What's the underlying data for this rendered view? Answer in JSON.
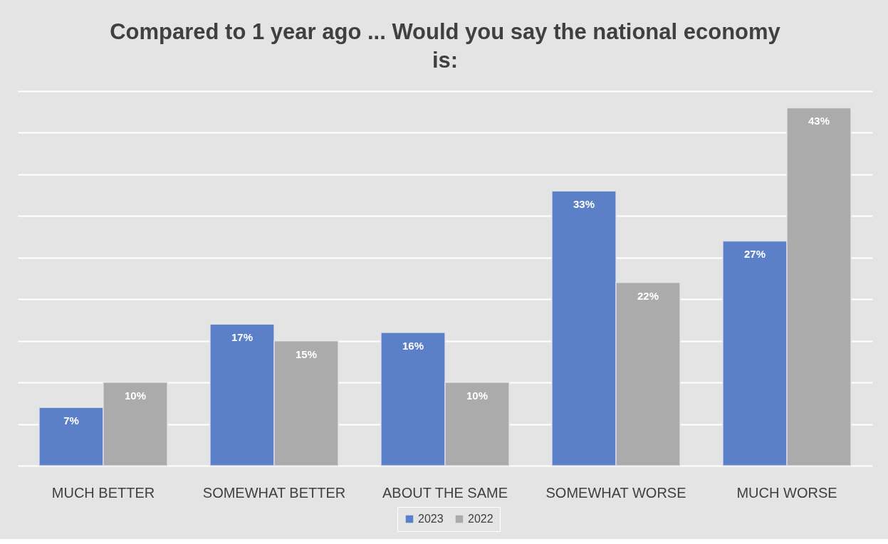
{
  "chart_data": {
    "type": "bar",
    "title": "Compared to 1 year ago ... Would you say the national economy is:",
    "categories": [
      "MUCH BETTER",
      "SOMEWHAT BETTER",
      "ABOUT THE SAME",
      "SOMEWHAT WORSE",
      "MUCH WORSE"
    ],
    "series": [
      {
        "name": "2023",
        "color": "#5b80c8",
        "values": [
          7,
          17,
          16,
          33,
          27
        ],
        "value_labels": [
          "7%",
          "17%",
          "16%",
          "33%",
          "27%"
        ]
      },
      {
        "name": "2022",
        "color": "#ababab",
        "values": [
          10,
          15,
          10,
          22,
          43
        ],
        "value_labels": [
          "10%",
          "15%",
          "10%",
          "22%",
          "43%"
        ]
      }
    ],
    "ylim": [
      0,
      45
    ],
    "yticks": [
      0,
      5,
      10,
      15,
      20,
      25,
      30,
      35,
      40,
      45
    ],
    "grid": "y",
    "legend": "bottom",
    "tick_labels": "x"
  }
}
